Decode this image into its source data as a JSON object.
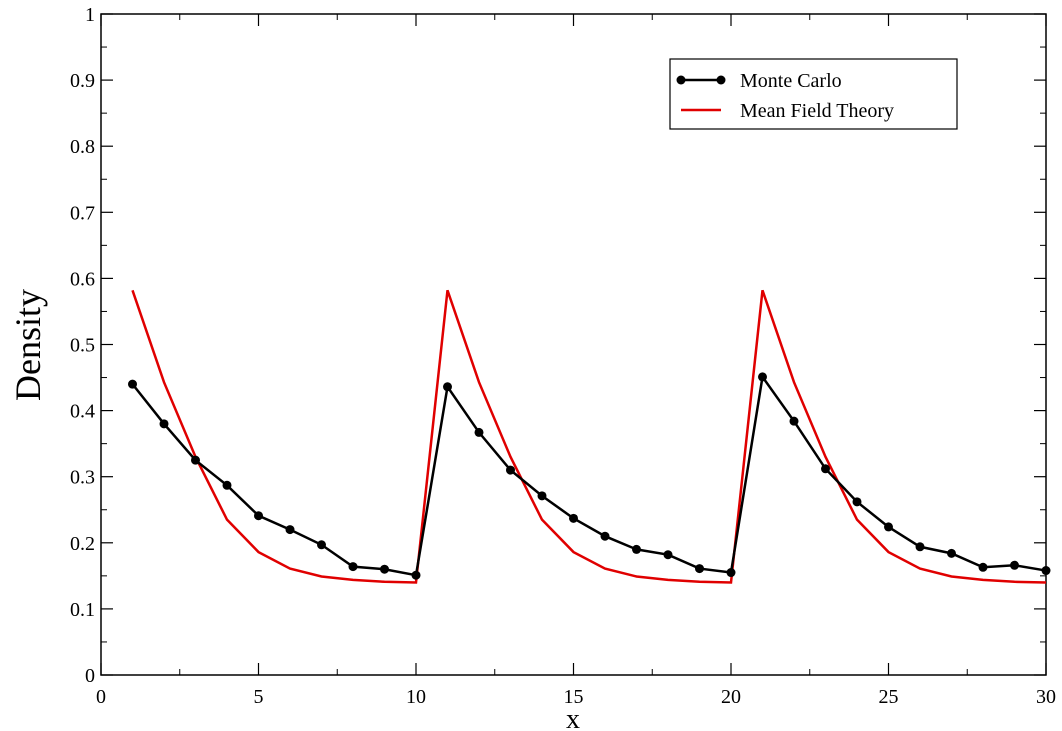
{
  "chart_data": {
    "type": "line",
    "title": "",
    "xlabel": "x",
    "ylabel": "Density",
    "xlim": [
      0,
      30
    ],
    "ylim": [
      0,
      1
    ],
    "x_ticks": [
      0,
      5,
      10,
      15,
      20,
      25,
      30
    ],
    "x_tick_labels": [
      "0",
      "5",
      "10",
      "15",
      "20",
      "25",
      "30"
    ],
    "y_ticks": [
      0,
      0.1,
      0.2,
      0.3,
      0.4,
      0.5,
      0.6,
      0.7,
      0.8,
      0.9,
      1
    ],
    "y_tick_labels": [
      "0",
      "0.1",
      "0.2",
      "0.3",
      "0.4",
      "0.5",
      "0.6",
      "0.7",
      "0.8",
      "0.9",
      "1"
    ],
    "grid": false,
    "legend_position": "top-right",
    "series": [
      {
        "name": "Monte Carlo",
        "color": "#000000",
        "markers": true,
        "x": [
          1,
          2,
          3,
          4,
          5,
          6,
          7,
          8,
          9,
          10,
          11,
          12,
          13,
          14,
          15,
          16,
          17,
          18,
          19,
          20,
          21,
          22,
          23,
          24,
          25,
          26,
          27,
          28,
          29,
          30
        ],
        "y": [
          0.44,
          0.38,
          0.325,
          0.287,
          0.241,
          0.22,
          0.197,
          0.164,
          0.16,
          0.151,
          0.436,
          0.367,
          0.31,
          0.271,
          0.237,
          0.21,
          0.19,
          0.182,
          0.161,
          0.155,
          0.451,
          0.384,
          0.312,
          0.262,
          0.224,
          0.194,
          0.184,
          0.163,
          0.166,
          0.158
        ]
      },
      {
        "name": "Mean Field Theory",
        "color": "#e00000",
        "markers": false,
        "x": [
          1,
          2,
          3,
          4,
          5,
          6,
          7,
          8,
          9,
          10,
          11,
          12,
          13,
          14,
          15,
          16,
          17,
          18,
          19,
          20,
          21,
          22,
          23,
          24,
          25,
          26,
          27,
          28,
          29,
          30
        ],
        "y": [
          0.582,
          0.443,
          0.33,
          0.235,
          0.186,
          0.161,
          0.149,
          0.144,
          0.141,
          0.14,
          0.582,
          0.443,
          0.33,
          0.235,
          0.186,
          0.161,
          0.149,
          0.144,
          0.141,
          0.14,
          0.582,
          0.443,
          0.33,
          0.235,
          0.186,
          0.161,
          0.149,
          0.144,
          0.141,
          0.14
        ]
      }
    ]
  }
}
